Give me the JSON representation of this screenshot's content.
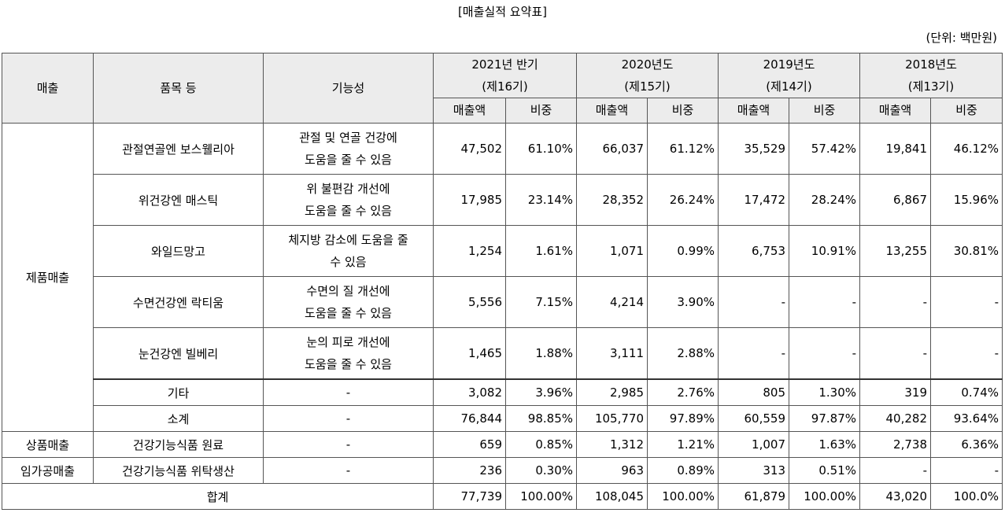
{
  "title": "[매출실적 요약표]",
  "unit": "(단위: 백만원)",
  "headers": {
    "sales": "매출",
    "item": "품목 등",
    "function": "기능성",
    "periods": [
      {
        "year": "2021년 반기",
        "term": "(제16기)"
      },
      {
        "year": "2020년도",
        "term": "(제15기)"
      },
      {
        "year": "2019년도",
        "term": "(제14기)"
      },
      {
        "year": "2018년도",
        "term": "(제13기)"
      }
    ],
    "amount": "매출액",
    "ratio": "비중"
  },
  "rows": [
    {
      "category": "제품매출",
      "item": "관절연골엔 보스웰리아",
      "func1": "관절 및 연골 건강에",
      "func2": "도움을 줄 수 있음",
      "v": [
        "47,502",
        "61.10%",
        "66,037",
        "61.12%",
        "35,529",
        "57.42%",
        "19,841",
        "46.12%"
      ]
    },
    {
      "item": "위건강엔 매스틱",
      "func1": "위 불편감 개선에",
      "func2": "도움을 줄 수 있음",
      "v": [
        "17,985",
        "23.14%",
        "28,352",
        "26.24%",
        "17,472",
        "28.24%",
        "6,867",
        "15.96%"
      ]
    },
    {
      "item": "와일드망고",
      "func1": "체지방 감소에 도움을 줄",
      "func2": "수 있음",
      "v": [
        "1,254",
        "1.61%",
        "1,071",
        "0.99%",
        "6,753",
        "10.91%",
        "13,255",
        "30.81%"
      ]
    },
    {
      "item": "수면건강엔 락티움",
      "func1": "수면의 질 개선에",
      "func2": "도움을 줄 수 있음",
      "v": [
        "5,556",
        "7.15%",
        "4,214",
        "3.90%",
        "-",
        "-",
        "-",
        "-"
      ]
    },
    {
      "item": "눈건강엔 빌베리",
      "func1": "눈의 피로 개선에",
      "func2": "도움을 줄 수 있음",
      "v": [
        "1,465",
        "1.88%",
        "3,111",
        "2.88%",
        "-",
        "-",
        "-",
        "-"
      ]
    },
    {
      "item": "기타",
      "func": "-",
      "v": [
        "3,082",
        "3.96%",
        "2,985",
        "2.76%",
        "805",
        "1.30%",
        "319",
        "0.74%"
      ]
    },
    {
      "item": "소계",
      "func": "-",
      "v": [
        "76,844",
        "98.85%",
        "105,770",
        "97.89%",
        "60,559",
        "97.87%",
        "40,282",
        "93.64%"
      ]
    },
    {
      "category": "상품매출",
      "item": "건강기능식품 원료",
      "func": "-",
      "v": [
        "659",
        "0.85%",
        "1,312",
        "1.21%",
        "1,007",
        "1.63%",
        "2,738",
        "6.36%"
      ]
    },
    {
      "category": "임가공매출",
      "item": "건강기능식품 위탁생산",
      "func": "-",
      "v": [
        "236",
        "0.30%",
        "963",
        "0.89%",
        "313",
        "0.51%",
        "-",
        "-"
      ]
    }
  ],
  "total": {
    "label": "합계",
    "v": [
      "77,739",
      "100.00%",
      "108,045",
      "100.00%",
      "61,879",
      "100.00%",
      "43,020",
      "100.0%"
    ]
  }
}
